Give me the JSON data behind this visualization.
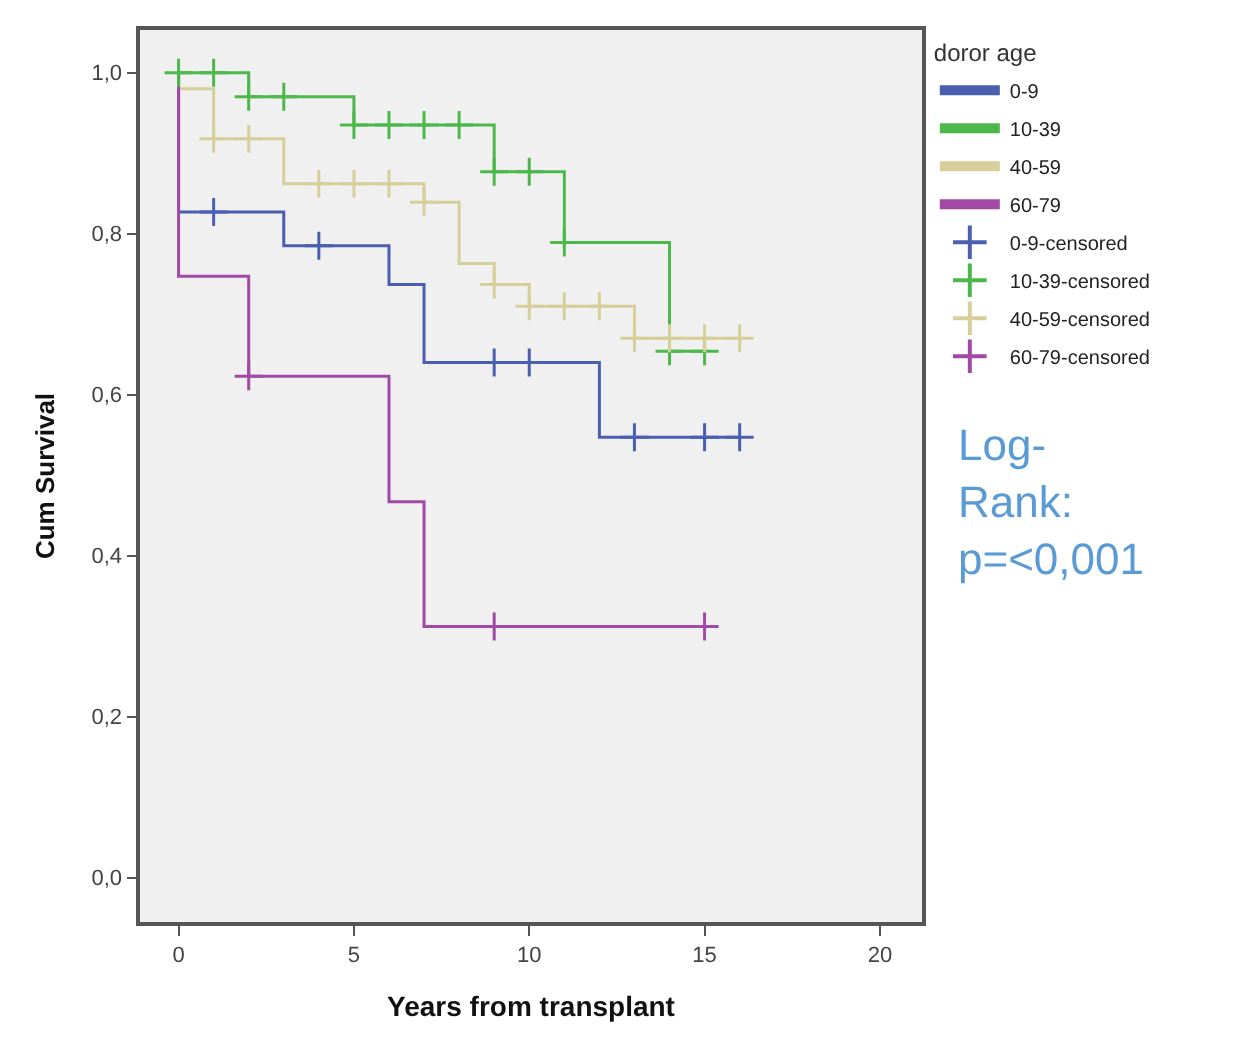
{
  "chart_data": {
    "type": "step",
    "xlabel": "Years from transplant",
    "ylabel": "Cum Survival",
    "legend_title": "doror age",
    "legend": "top right",
    "grid": false,
    "xlim": [
      -1.1,
      21.2
    ],
    "xticks": [
      0,
      5,
      10,
      15,
      20
    ],
    "ylim": [
      -0.055,
      1.053
    ],
    "yticks": [
      {
        "value": 0,
        "label": "0,0"
      },
      {
        "value": 0.2,
        "label": "0,2"
      },
      {
        "value": 0.4,
        "label": "0,4"
      },
      {
        "value": 0.6,
        "label": "0,6"
      },
      {
        "value": 0.8,
        "label": "0,8"
      },
      {
        "value": 1.0,
        "label": "1,0"
      }
    ],
    "series": [
      {
        "name": "0-9",
        "marker": "none",
        "color": "#4b5fb0",
        "x": [
          0,
          0,
          3,
          6,
          7,
          12,
          16
        ],
        "values": [
          1,
          0.827,
          0.785,
          0.737,
          0.64,
          0.547,
          0.547
        ]
      },
      {
        "name": "10-39",
        "marker": "none",
        "color": "#4cb84c",
        "x": [
          0,
          2,
          5,
          9,
          11,
          14,
          15
        ],
        "values": [
          1,
          0.97,
          0.935,
          0.877,
          0.789,
          0.654,
          0.654
        ]
      },
      {
        "name": "40-59",
        "marker": "none",
        "color": "#d6cf9a",
        "x": [
          0,
          0,
          1,
          3,
          7,
          8,
          9,
          10,
          13,
          16
        ],
        "values": [
          1,
          0.98,
          0.918,
          0.862,
          0.839,
          0.763,
          0.737,
          0.71,
          0.67,
          0.67
        ]
      },
      {
        "name": "60-79",
        "marker": "none",
        "color": "#a04aa6",
        "x": [
          0,
          0,
          2,
          6,
          7,
          15
        ],
        "values": [
          1,
          0.747,
          0.623,
          0.467,
          0.312,
          0.312
        ]
      },
      {
        "name": "0-9-censored",
        "type": "scatter",
        "marker": "cross",
        "color": "#4b5fb0",
        "x": [
          1,
          4,
          9,
          10,
          13,
          15,
          16
        ],
        "values": [
          0.827,
          0.785,
          0.64,
          0.64,
          0.547,
          0.547,
          0.547
        ]
      },
      {
        "name": "10-39-censored",
        "type": "scatter",
        "marker": "cross",
        "color": "#4cb84c",
        "x": [
          0,
          1,
          2,
          3,
          5,
          6,
          7,
          8,
          9,
          10,
          11,
          14,
          15
        ],
        "values": [
          1,
          1,
          0.97,
          0.97,
          0.935,
          0.935,
          0.935,
          0.935,
          0.877,
          0.877,
          0.789,
          0.654,
          0.654
        ]
      },
      {
        "name": "40-59-censored",
        "type": "scatter",
        "marker": "cross",
        "color": "#d6cf9a",
        "x": [
          1,
          2,
          4,
          5,
          6,
          7,
          9,
          10,
          11,
          12,
          13,
          14,
          15,
          16
        ],
        "values": [
          0.918,
          0.918,
          0.862,
          0.862,
          0.862,
          0.839,
          0.737,
          0.71,
          0.71,
          0.71,
          0.67,
          0.67,
          0.67,
          0.67
        ]
      },
      {
        "name": "60-79-censored",
        "type": "scatter",
        "marker": "cross",
        "color": "#a04aa6",
        "x": [
          2,
          9,
          15
        ],
        "values": [
          0.623,
          0.312,
          0.312
        ]
      }
    ],
    "annotations": [
      "Log-\nRank:\np=<0,001"
    ]
  }
}
